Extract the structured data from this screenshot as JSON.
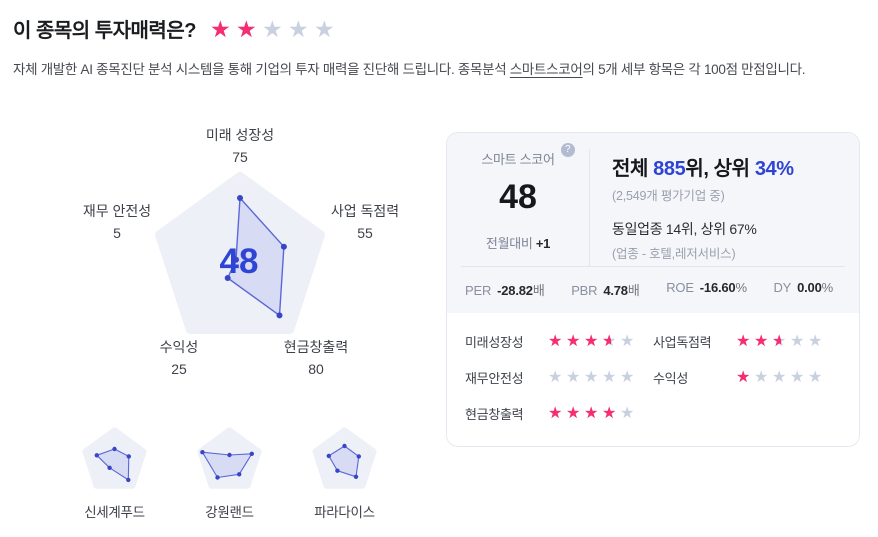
{
  "page": {
    "title": "이 종목의 투자매력은?",
    "title_rating": 2,
    "subtitle_prefix": "자체 개발한 AI 종목진단 분석 시스템을 통해 기업의 투자 매력을 진단해 드립니다. 종목분석 ",
    "subtitle_link": "스마트스코어",
    "subtitle_suffix": "의 5개 세부 항목은 각 100점 만점입니다."
  },
  "colors": {
    "accent_blue": "#2e44d4",
    "star_pink": "#f62d73",
    "star_gray": "#c9d0e0",
    "pentagon_bg": "#eef0f8",
    "polygon_stroke": "#5a68d8",
    "polygon_fill": "rgba(86,103,214,0.15)",
    "polygon_dot": "#3846c6",
    "radar_label": "#3d4149"
  },
  "chart_data": [
    {
      "type": "radar",
      "title": "스마트스코어 레이더",
      "axes": [
        "미래 성장성",
        "사업 독점력",
        "현금창출력",
        "수익성",
        "재무 안전성"
      ],
      "values": [
        75,
        55,
        80,
        25,
        5
      ],
      "max": 100,
      "center_label": "48"
    },
    {
      "type": "radar",
      "title": "신세계푸드",
      "axes": [
        "미래 성장성",
        "사업 독점력",
        "현금창출력",
        "수익성",
        "재무 안전성"
      ],
      "values": [
        40,
        50,
        78,
        28,
        62
      ],
      "max": 100
    },
    {
      "type": "radar",
      "title": "강원랜드",
      "axes": [
        "미래 성장성",
        "사업 독점력",
        "현금창출력",
        "수익성",
        "재무 안전성"
      ],
      "values": [
        20,
        78,
        55,
        68,
        95
      ],
      "max": 100
    },
    {
      "type": "radar",
      "title": "파라다이스",
      "axes": [
        "미래 성장성",
        "사업 독점력",
        "현금창출력",
        "수익성",
        "재무 안전성"
      ],
      "values": [
        50,
        50,
        65,
        40,
        55
      ],
      "max": 100
    }
  ],
  "peers": [
    "신세계푸드",
    "강원랜드",
    "파라다이스"
  ],
  "score_card": {
    "score_label": "스마트 스코어",
    "help_icon": "?",
    "score": "48",
    "mom_label": "전월대비 ",
    "mom_value": "+1",
    "rank": {
      "t1": "전체 ",
      "overall_rank": "885",
      "t2": "위, 상위 ",
      "overall_pct": "34%",
      "overall_sub": "(2,549개 평가기업 중)",
      "industry_line": "동일업종 14위, 상위 67%",
      "industry_sub": "(업종 - 호텔,레저서비스)"
    },
    "metrics": [
      {
        "label": "PER",
        "value": "-28.82",
        "unit": "배"
      },
      {
        "label": "PBR",
        "value": "4.78",
        "unit": "배"
      },
      {
        "label": "ROE",
        "value": "-16.60",
        "unit": "%"
      },
      {
        "label": "DY",
        "value": "0.00",
        "unit": "%"
      }
    ],
    "ratings": [
      {
        "label": "미래성장성",
        "stars": 3.5
      },
      {
        "label": "사업독점력",
        "stars": 2.5
      },
      {
        "label": "재무안전성",
        "stars": 0
      },
      {
        "label": "수익성",
        "stars": 1
      },
      {
        "label": "현금창출력",
        "stars": 4
      }
    ]
  }
}
